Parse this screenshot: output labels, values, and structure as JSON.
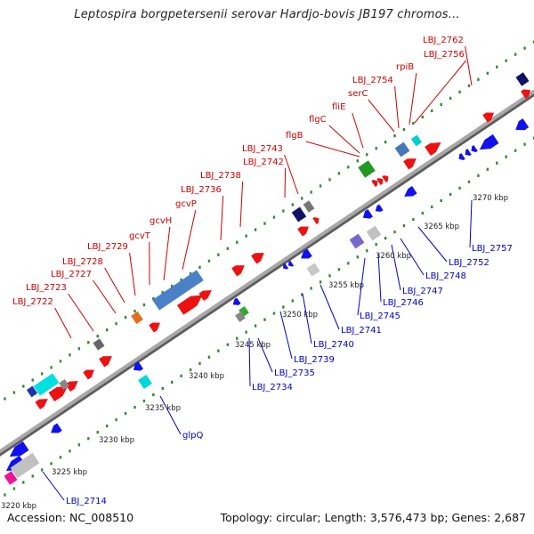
{
  "title": "Leptospira borgpetersenii serovar Hardjo-bovis JB197 chromos...",
  "footer": {
    "accession": "Accession: NC_008510",
    "topology": "Topology: circular; Length: 3,576,473 bp; Genes: 2,687"
  },
  "colors": {
    "backbone": "#9a9a9a",
    "tick": "#2e8b2e",
    "forward_label": "#cc0000",
    "reverse_label": "#0000cc",
    "scale_text": "#222222"
  },
  "scale_labels": [
    "3220 kbp",
    "3225 kbp",
    "3230 kbp",
    "3235 kbp",
    "3240 kbp",
    "3245 kbp",
    "3250 kbp",
    "3255 kbp",
    "3260 kbp",
    "3265 kbp",
    "3270 kbp"
  ],
  "forward_labels": [
    "LBJ_2722",
    "LBJ_2723",
    "LBJ_2727",
    "LBJ_2728",
    "LBJ_2729",
    "gcvT",
    "gcvH",
    "gcvP",
    "LBJ_2736",
    "LBJ_2738",
    "LBJ_2742",
    "LBJ_2743",
    "flgB",
    "flgC",
    "fliE",
    "serC",
    "LBJ_2754",
    "rpiB",
    "LBJ_2756",
    "LBJ_2762"
  ],
  "reverse_labels": [
    "LBJ_2714",
    "glpQ",
    "LBJ_2734",
    "LBJ_2735",
    "LBJ_2739",
    "LBJ_2740",
    "LBJ_2741",
    "LBJ_2745",
    "LBJ_2746",
    "LBJ_2747",
    "LBJ_2748",
    "LBJ_2752",
    "LBJ_2757"
  ]
}
